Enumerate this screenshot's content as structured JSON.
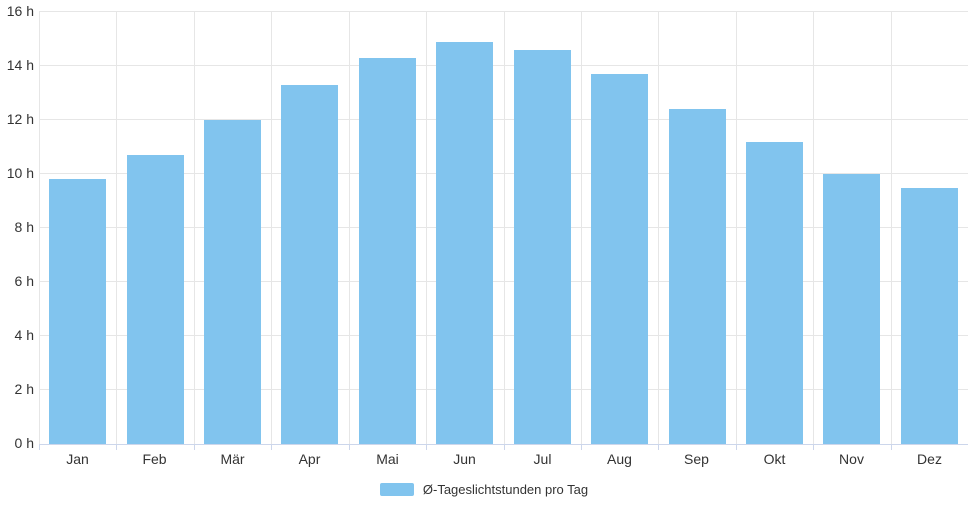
{
  "chart_data": {
    "type": "bar",
    "title": "",
    "categories": [
      "Jan",
      "Feb",
      "Mär",
      "Apr",
      "Mai",
      "Jun",
      "Jul",
      "Aug",
      "Sep",
      "Okt",
      "Nov",
      "Dez"
    ],
    "values": [
      9.8,
      10.7,
      12.0,
      13.3,
      14.3,
      14.9,
      14.6,
      13.7,
      12.4,
      11.2,
      10.0,
      9.5
    ],
    "series_name": "Ø-Tageslichtstunden pro Tag",
    "xlabel": "",
    "ylabel": "",
    "y_unit": "h",
    "ylim": [
      0,
      16
    ],
    "y_tick_step": 2,
    "y_tick_labels": [
      "0 h",
      "2 h",
      "4 h",
      "6 h",
      "8 h",
      "10 h",
      "12 h",
      "14 h",
      "16 h"
    ],
    "grid": "horizontal and vertical light gray gridlines",
    "legend_position": "bottom-center",
    "colors": {
      "bar_fill": "#81c4ee",
      "gridline": "#e6e6e6",
      "axis_line": "#ccd6eb",
      "text": "#333333",
      "background": "#ffffff"
    }
  },
  "legend": {
    "label": "Ø-Tageslichtstunden pro Tag"
  }
}
